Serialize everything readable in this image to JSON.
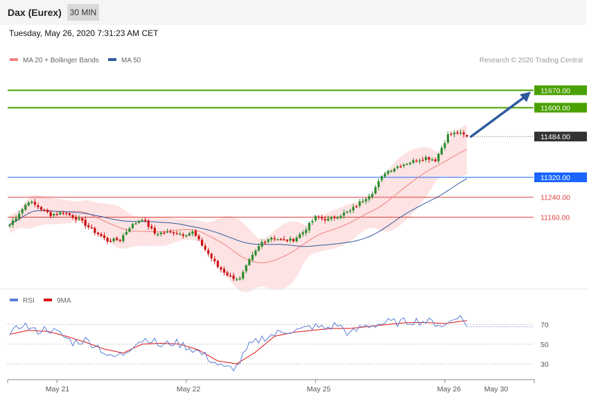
{
  "header": {
    "title": "Dax (Eurex)",
    "timeframe": "30 MIN",
    "timestamp": "Tuesday, May 26, 2020 7:31:23 AM CET"
  },
  "colors": {
    "ma20": "#f08080",
    "bands_fill": "#fde0e0",
    "ma50": "#2f5a9e",
    "bull": "#2e8b2e",
    "bear": "#cc1111",
    "target": "#4aa000",
    "pivot": "#1a66ff",
    "support": "#e04040",
    "arrow": "#2f5a9e",
    "rsi": "#5b7fd6",
    "rsi_ma": "#dd1111"
  },
  "chart_data": [
    {
      "type": "candlestick",
      "legend": [
        {
          "name": "MA 20 + Bollinger Bands",
          "color": "#f08080"
        },
        {
          "name": "MA 50",
          "color": "#2f5a9e"
        }
      ],
      "copyright": "Research © 2020 Trading Central",
      "ylim": [
        10880,
        11760
      ],
      "last_price": "11484.00",
      "levels": [
        {
          "value": 11670,
          "label": "11670.00",
          "kind": "target"
        },
        {
          "value": 11600,
          "label": "11600.00",
          "kind": "target"
        },
        {
          "value": 11320,
          "label": "11320.00",
          "kind": "pivot"
        },
        {
          "value": 11240,
          "label": "11240.00",
          "kind": "support"
        },
        {
          "value": 11160,
          "label": "11160.00",
          "kind": "support"
        }
      ],
      "x_ticks": [
        "May 21",
        "May 22",
        "May 25",
        "May 26",
        "May 30"
      ],
      "anchors": [
        {
          "i": 0,
          "p": 11130
        },
        {
          "i": 6,
          "p": 11225
        },
        {
          "i": 13,
          "p": 11170
        },
        {
          "i": 17,
          "p": 11180
        },
        {
          "i": 22,
          "p": 11150
        },
        {
          "i": 26,
          "p": 11110
        },
        {
          "i": 31,
          "p": 11065
        },
        {
          "i": 35,
          "p": 11070
        },
        {
          "i": 38,
          "p": 11120
        },
        {
          "i": 42,
          "p": 11155
        },
        {
          "i": 46,
          "p": 11095
        },
        {
          "i": 52,
          "p": 11100
        },
        {
          "i": 55,
          "p": 11090
        },
        {
          "i": 58,
          "p": 11100
        },
        {
          "i": 62,
          "p": 11030
        },
        {
          "i": 66,
          "p": 10960
        },
        {
          "i": 70,
          "p": 10920
        },
        {
          "i": 73,
          "p": 10910
        },
        {
          "i": 76,
          "p": 10985
        },
        {
          "i": 80,
          "p": 11060
        },
        {
          "i": 83,
          "p": 11080
        },
        {
          "i": 87,
          "p": 11065
        },
        {
          "i": 90,
          "p": 11070
        },
        {
          "i": 93,
          "p": 11100
        },
        {
          "i": 97,
          "p": 11160
        },
        {
          "i": 101,
          "p": 11150
        },
        {
          "i": 105,
          "p": 11170
        },
        {
          "i": 108,
          "p": 11185
        },
        {
          "i": 112,
          "p": 11230
        },
        {
          "i": 115,
          "p": 11260
        },
        {
          "i": 119,
          "p": 11340
        },
        {
          "i": 124,
          "p": 11370
        },
        {
          "i": 128,
          "p": 11385
        },
        {
          "i": 132,
          "p": 11400
        },
        {
          "i": 135,
          "p": 11390
        },
        {
          "i": 139,
          "p": 11490
        },
        {
          "i": 142,
          "p": 11500
        },
        {
          "i": 145,
          "p": 11484
        }
      ]
    },
    {
      "type": "line",
      "legend": [
        {
          "name": "RSI",
          "color": "#5b7fd6"
        },
        {
          "name": "9MA",
          "color": "#dd1111"
        }
      ],
      "ylim": [
        14,
        90
      ],
      "y_ticks": [
        70,
        50,
        30
      ],
      "rsi_anchors": [
        {
          "i": 0,
          "v": 58
        },
        {
          "i": 4,
          "v": 71
        },
        {
          "i": 8,
          "v": 63
        },
        {
          "i": 12,
          "v": 66
        },
        {
          "i": 16,
          "v": 60
        },
        {
          "i": 20,
          "v": 52
        },
        {
          "i": 24,
          "v": 54
        },
        {
          "i": 28,
          "v": 48
        },
        {
          "i": 32,
          "v": 36
        },
        {
          "i": 36,
          "v": 40
        },
        {
          "i": 40,
          "v": 52
        },
        {
          "i": 44,
          "v": 56
        },
        {
          "i": 48,
          "v": 48
        },
        {
          "i": 52,
          "v": 52
        },
        {
          "i": 56,
          "v": 48
        },
        {
          "i": 60,
          "v": 42
        },
        {
          "i": 64,
          "v": 34
        },
        {
          "i": 68,
          "v": 25
        },
        {
          "i": 72,
          "v": 27
        },
        {
          "i": 76,
          "v": 48
        },
        {
          "i": 80,
          "v": 56
        },
        {
          "i": 84,
          "v": 60
        },
        {
          "i": 88,
          "v": 64
        },
        {
          "i": 92,
          "v": 64
        },
        {
          "i": 96,
          "v": 68
        },
        {
          "i": 100,
          "v": 66
        },
        {
          "i": 104,
          "v": 70
        },
        {
          "i": 108,
          "v": 60
        },
        {
          "i": 112,
          "v": 68
        },
        {
          "i": 116,
          "v": 70
        },
        {
          "i": 120,
          "v": 72
        },
        {
          "i": 124,
          "v": 72
        },
        {
          "i": 128,
          "v": 74
        },
        {
          "i": 132,
          "v": 73
        },
        {
          "i": 136,
          "v": 71
        },
        {
          "i": 138,
          "v": 68
        },
        {
          "i": 142,
          "v": 80
        },
        {
          "i": 145,
          "v": 70
        }
      ],
      "ma_anchors": [
        {
          "i": 0,
          "v": 60
        },
        {
          "i": 6,
          "v": 64
        },
        {
          "i": 12,
          "v": 63
        },
        {
          "i": 18,
          "v": 58
        },
        {
          "i": 24,
          "v": 52
        },
        {
          "i": 30,
          "v": 45
        },
        {
          "i": 36,
          "v": 41
        },
        {
          "i": 42,
          "v": 50
        },
        {
          "i": 48,
          "v": 51
        },
        {
          "i": 54,
          "v": 50
        },
        {
          "i": 60,
          "v": 44
        },
        {
          "i": 66,
          "v": 33
        },
        {
          "i": 72,
          "v": 30
        },
        {
          "i": 78,
          "v": 42
        },
        {
          "i": 84,
          "v": 58
        },
        {
          "i": 90,
          "v": 62
        },
        {
          "i": 96,
          "v": 64
        },
        {
          "i": 102,
          "v": 66
        },
        {
          "i": 108,
          "v": 66
        },
        {
          "i": 114,
          "v": 68
        },
        {
          "i": 120,
          "v": 70
        },
        {
          "i": 126,
          "v": 72
        },
        {
          "i": 132,
          "v": 72
        },
        {
          "i": 138,
          "v": 71
        },
        {
          "i": 145,
          "v": 74
        }
      ]
    }
  ]
}
